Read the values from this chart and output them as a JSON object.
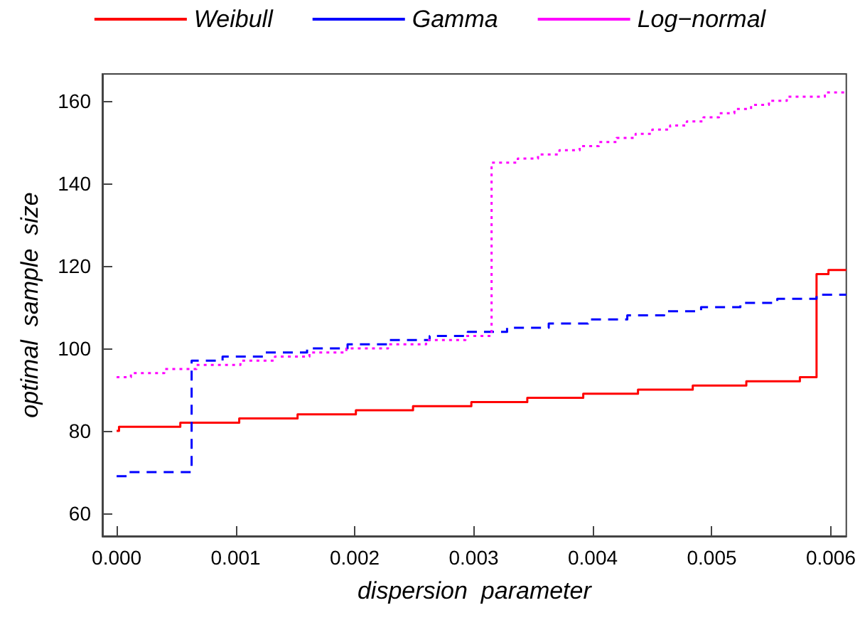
{
  "chart_data": {
    "type": "step",
    "xlabel": "dispersion  parameter",
    "ylabel": "optimal  sample  size",
    "legend": "top",
    "grid": false,
    "xlim": [
      -0.00012,
      0.00613
    ],
    "xticks": [
      {
        "value": 0,
        "label": "0.000"
      },
      {
        "value": 0.001,
        "label": "0.001"
      },
      {
        "value": 0.002,
        "label": "0.002"
      },
      {
        "value": 0.003,
        "label": "0.003"
      },
      {
        "value": 0.004,
        "label": "0.004"
      },
      {
        "value": 0.005,
        "label": "0.005"
      },
      {
        "value": 0.006,
        "label": "0.006"
      }
    ],
    "ylim": [
      54.5,
      166.5
    ],
    "yticks": [
      60,
      80,
      100,
      120,
      140,
      160
    ],
    "series": [
      {
        "name": "Weibull",
        "color": "#ff0000",
        "line_style": "solid",
        "x": [
          0,
          2e-05,
          0.000535,
          0.00103,
          0.00152,
          0.00201,
          0.00249,
          0.00298,
          0.00345,
          0.00392,
          0.00438,
          0.00484,
          0.00529,
          0.00574,
          0.00588,
          0.00598,
          0.00613
        ],
        "values": [
          80,
          81,
          82,
          83,
          84,
          85,
          86,
          87,
          88,
          89,
          90,
          91,
          92,
          93,
          118,
          119,
          119
        ]
      },
      {
        "name": "Gamma",
        "color": "#0000ff",
        "line_style": "dashed",
        "x": [
          0,
          9e-05,
          0.00063,
          0.00089,
          0.00125,
          0.0016,
          0.00194,
          0.00228,
          0.00263,
          0.00295,
          0.00328,
          0.00363,
          0.00396,
          0.00429,
          0.0046,
          0.00491,
          0.00524,
          0.00555,
          0.00588,
          0.00613
        ],
        "values": [
          69,
          70,
          97,
          98,
          99,
          100,
          101,
          102,
          103,
          104,
          105,
          106,
          107,
          108,
          109,
          110,
          111,
          112,
          113,
          113
        ]
      },
      {
        "name": "Log−normal",
        "color": "#ff00ff",
        "line_style": "dotted",
        "x": [
          0,
          0.00012,
          0.0004,
          0.00067,
          0.00104,
          0.00133,
          0.00162,
          0.00193,
          0.00228,
          0.0026,
          0.00293,
          0.00315,
          0.00337,
          0.00354,
          0.00372,
          0.00389,
          0.00405,
          0.0042,
          0.00436,
          0.0045,
          0.00465,
          0.00479,
          0.00493,
          0.00506,
          0.00519,
          0.00533,
          0.00548,
          0.00563,
          0.00595,
          0.00613
        ],
        "values": [
          93,
          94,
          95,
          96,
          97,
          98,
          99,
          100,
          101,
          102,
          103,
          145,
          146,
          147,
          148,
          149,
          150,
          151,
          152,
          153,
          154,
          155,
          156,
          157,
          158,
          159,
          160,
          161,
          162,
          162
        ]
      }
    ]
  }
}
